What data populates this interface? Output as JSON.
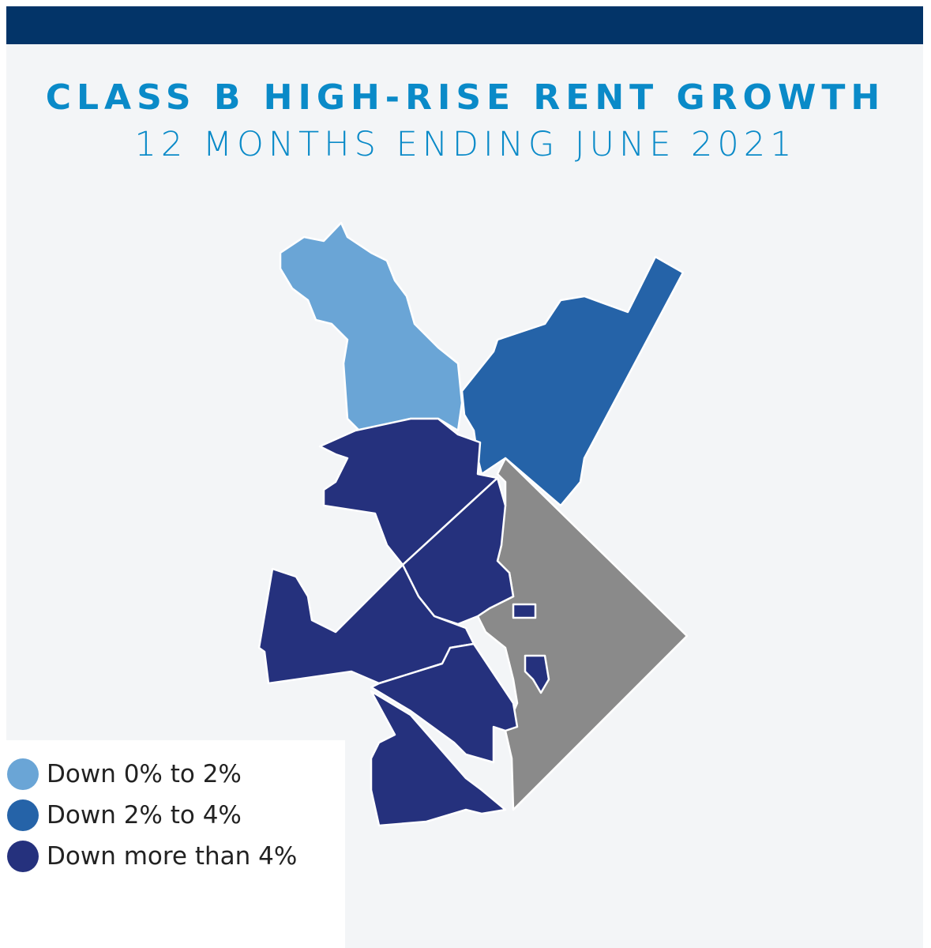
{
  "header": {
    "title": "CLASS B HIGH-RISE RENT GROWTH",
    "subtitle": "12 MONTHS ENDING JUNE 2021"
  },
  "legend": {
    "items": [
      {
        "label": "Down 0% to 2%",
        "color": "#6aa5d6"
      },
      {
        "label": "Down 2% to 4%",
        "color": "#2563a8"
      },
      {
        "label": "Down more than 4%",
        "color": "#25317d"
      }
    ]
  }
}
